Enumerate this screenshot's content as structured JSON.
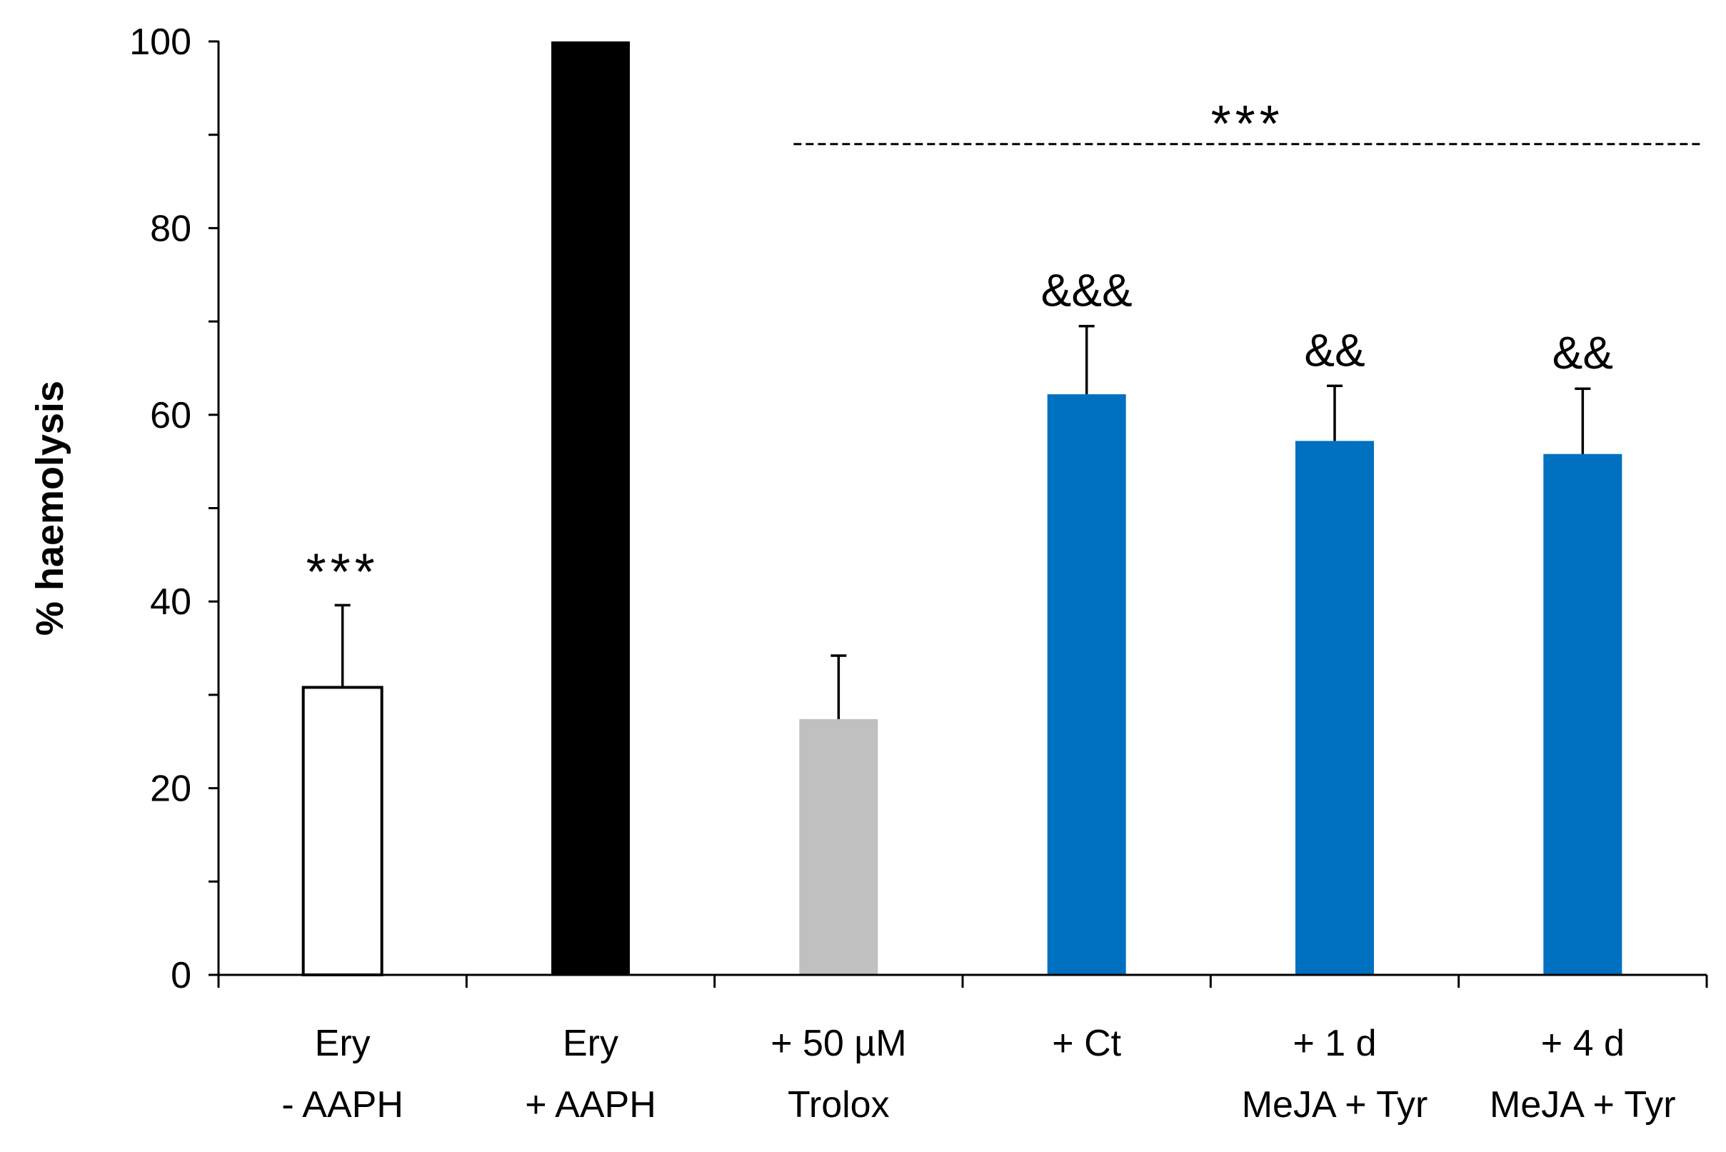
{
  "chart_data": {
    "type": "bar",
    "title": "",
    "xlabel": "",
    "ylabel": "% haemolysis",
    "ylim": [
      0,
      100
    ],
    "yticks": [
      "0",
      "20",
      "40",
      "60",
      "80",
      "100"
    ],
    "categories": [
      [
        "Ery",
        "- AAPH"
      ],
      [
        "Ery",
        "+ AAPH"
      ],
      [
        "+ 50 µM",
        "Trolox"
      ],
      [
        "+ Ct"
      ],
      [
        "+ 1 d",
        "MeJA + Tyr"
      ],
      [
        "+ 4 d",
        "MeJA + Tyr"
      ]
    ],
    "values": [
      30.8,
      100,
      27.4,
      62.2,
      57.2,
      55.8
    ],
    "errors": [
      8.8,
      0,
      6.8,
      7.3,
      5.9,
      7.0
    ],
    "colors": [
      "#ffffff",
      "#000000",
      "#c0c0c0",
      "#0070c0",
      "#0070c0",
      "#0070c0"
    ],
    "bar_annotations": [
      "***",
      "",
      "",
      "&&&",
      "&&",
      "&&"
    ],
    "group_annotation": {
      "text": "***",
      "from_category": 2,
      "to_category": 5,
      "y": 89
    }
  }
}
